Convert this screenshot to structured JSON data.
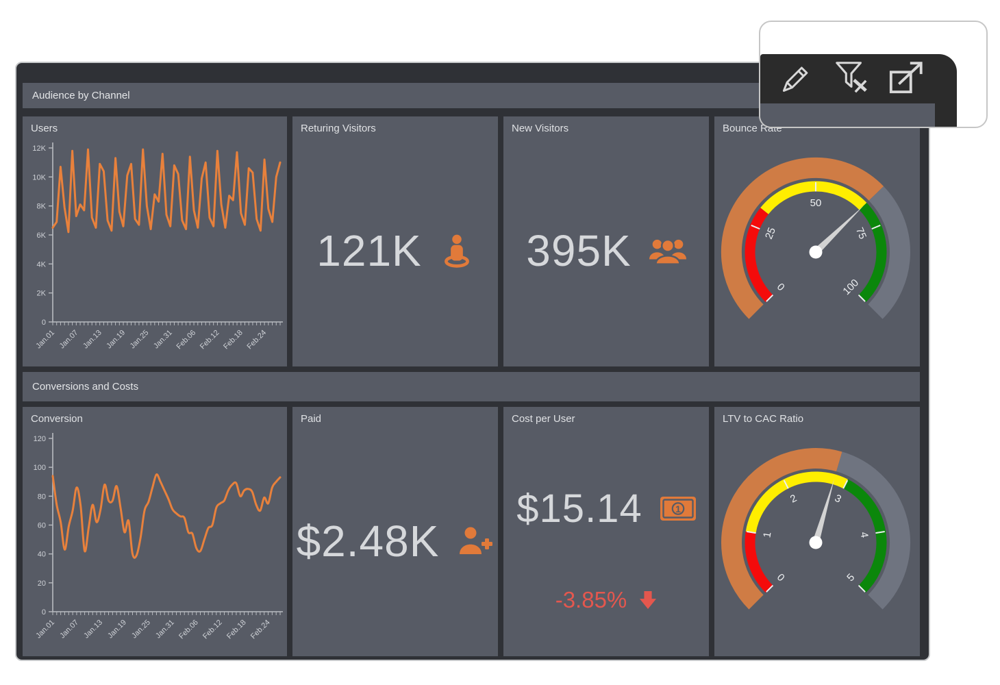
{
  "colors": {
    "page_bg": "#ffffff",
    "dashboard_bg": "#2f3136",
    "panel_bg": "#575b65",
    "line_orange": "#e8813c",
    "icon_orange": "#e17a3a",
    "gauge_progress_orange": "#cf7c45",
    "gauge_track_gray": "#6f7480",
    "band_red": "#f40b0b",
    "band_yellow": "#ffee00",
    "band_green": "#0b870b",
    "value_text": "#d6d8db",
    "delta_red": "#e4574e",
    "axis_text": "#ced1d6",
    "toolbar_bg": "#2b2b2b",
    "toolbar_icon": "#d8d8d8"
  },
  "sections": [
    {
      "title": "Audience by Channel"
    },
    {
      "title": "Conversions and Costs"
    }
  ],
  "callout_toolbar": {
    "buttons": [
      {
        "name": "edit",
        "icon": "pencil-icon"
      },
      {
        "name": "clear-filter",
        "icon": "filter-clear-icon"
      },
      {
        "name": "maximize",
        "icon": "maximize-icon"
      }
    ]
  },
  "panels": {
    "users": {
      "title": "Users",
      "chart_data": {
        "type": "line",
        "smooth": false,
        "title": "Users",
        "xlabel": "",
        "ylabel": "",
        "ylim": [
          0,
          12000
        ],
        "y_ticks": [
          {
            "v": 0,
            "label": "0"
          },
          {
            "v": 2000,
            "label": "2K"
          },
          {
            "v": 4000,
            "label": "4K"
          },
          {
            "v": 6000,
            "label": "6K"
          },
          {
            "v": 8000,
            "label": "8K"
          },
          {
            "v": 10000,
            "label": "10K"
          },
          {
            "v": 12000,
            "label": "12K"
          }
        ],
        "x_tick_labels": [
          "Jan.01",
          "Jan.07",
          "Jan.13",
          "Jan.19",
          "Jan.25",
          "Jan.31",
          "Feb.06",
          "Feb.12",
          "Feb.18",
          "Feb.24"
        ],
        "x_label_step": 6,
        "legend": "none",
        "grid": "off",
        "values": [
          6500,
          6900,
          10700,
          7900,
          6200,
          11800,
          7300,
          8100,
          7700,
          11900,
          7200,
          6500,
          10900,
          10400,
          7000,
          6300,
          11300,
          7600,
          6600,
          10100,
          10900,
          7100,
          6700,
          11900,
          8000,
          6400,
          8800,
          8300,
          11600,
          7400,
          6600,
          10800,
          10200,
          7000,
          6400,
          11400,
          7700,
          6500,
          9900,
          11000,
          7200,
          6600,
          11800,
          8100,
          6500,
          8700,
          8400,
          11700,
          7500,
          6700,
          10600,
          10300,
          7100,
          6300,
          11200,
          7800,
          6900,
          10000,
          11000
        ]
      }
    },
    "returning_visitors": {
      "title": "Returing Visitors",
      "value": "121K",
      "icon": "street-view-person-icon"
    },
    "new_visitors": {
      "title": "New Visitors",
      "value": "395K",
      "icon": "users-group-icon"
    },
    "bounce_rate": {
      "title": "Bounce Rate",
      "chart_data": {
        "type": "gauge",
        "title": "Bounce Rate",
        "min": 0,
        "max": 100,
        "value": 67,
        "tick_values": [
          0,
          25,
          50,
          75,
          100
        ],
        "bands": [
          {
            "from": 0,
            "to": 31,
            "color": "#f40b0b"
          },
          {
            "from": 31,
            "to": 67,
            "color": "#ffee00"
          },
          {
            "from": 67,
            "to": 100,
            "color": "#0b870b"
          }
        ],
        "progress_color": "#cf7c45",
        "track_color": "#6f7480"
      }
    },
    "conversion": {
      "title": "Conversion",
      "chart_data": {
        "type": "line",
        "smooth": true,
        "title": "Conversion",
        "xlabel": "",
        "ylabel": "",
        "ylim": [
          0,
          120
        ],
        "y_ticks": [
          {
            "v": 0,
            "label": "0"
          },
          {
            "v": 20,
            "label": "20"
          },
          {
            "v": 40,
            "label": "40"
          },
          {
            "v": 60,
            "label": "60"
          },
          {
            "v": 80,
            "label": "80"
          },
          {
            "v": 100,
            "label": "100"
          },
          {
            "v": 120,
            "label": "120"
          }
        ],
        "x_tick_labels": [
          "Jan.01",
          "Jan.07",
          "Jan.13",
          "Jan.19",
          "Jan.25",
          "Jan.31",
          "Feb.06",
          "Feb.12",
          "Feb.18",
          "Feb.24"
        ],
        "x_label_step": 6,
        "legend": "none",
        "grid": "off",
        "values": [
          94,
          74,
          62,
          43,
          59,
          70,
          86,
          73,
          42,
          58,
          74,
          62,
          71,
          88,
          77,
          77,
          87,
          72,
          55,
          63,
          40,
          39,
          51,
          70,
          76,
          86,
          95,
          90,
          84,
          78,
          71,
          68,
          66,
          65,
          55,
          54,
          44,
          42,
          50,
          58,
          60,
          72,
          75,
          77,
          84,
          88,
          89,
          80,
          84,
          85,
          83,
          74,
          70,
          79,
          75,
          86,
          90,
          93
        ]
      }
    },
    "paid": {
      "title": "Paid",
      "value": "$2.48K",
      "icon": "user-plus-icon"
    },
    "cost_per_user": {
      "title": "Cost per User",
      "value": "$15.14",
      "icon": "money-bill-icon",
      "delta": "-3.85%",
      "delta_direction": "down",
      "delta_icon": "arrow-down-icon"
    },
    "ltv_to_cac": {
      "title": "LTV to CAC Ratio",
      "chart_data": {
        "type": "gauge",
        "title": "LTV to CAC Ratio",
        "min": 0,
        "max": 5,
        "value": 2.8,
        "tick_values": [
          0,
          1,
          2,
          3,
          4,
          5
        ],
        "bands": [
          {
            "from": 0,
            "to": 1,
            "color": "#f40b0b"
          },
          {
            "from": 1,
            "to": 3,
            "color": "#ffee00"
          },
          {
            "from": 3,
            "to": 5,
            "color": "#0b870b"
          }
        ],
        "progress_color": "#cf7c45",
        "track_color": "#6f7480"
      }
    }
  }
}
